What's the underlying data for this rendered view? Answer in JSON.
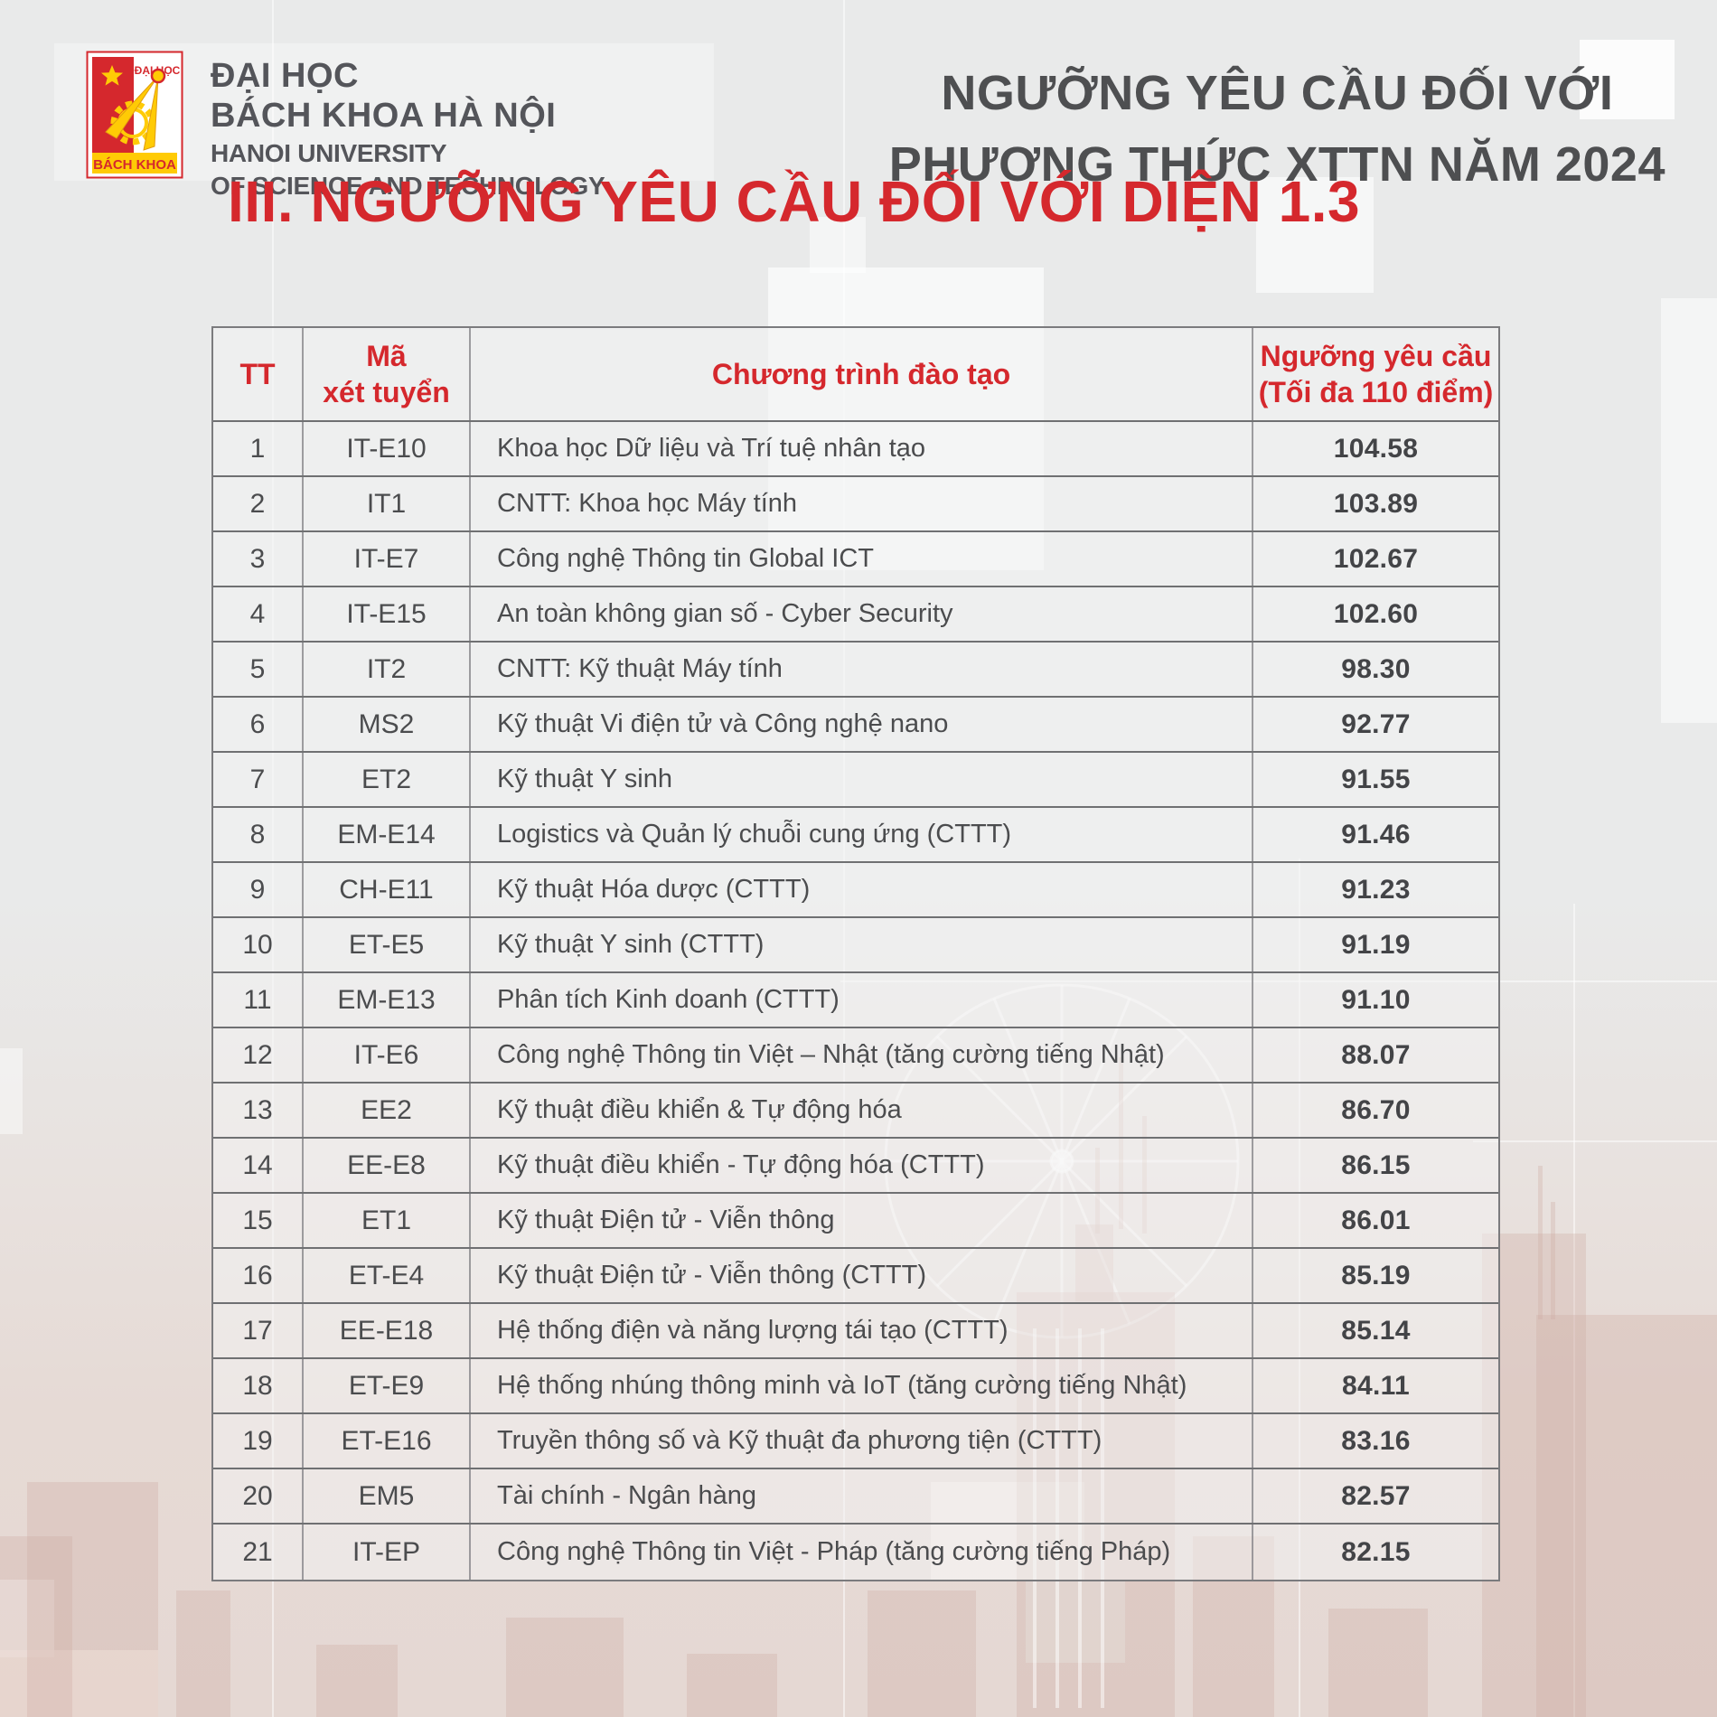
{
  "brand": {
    "logo": {
      "top_text": "ĐẠI HỌC",
      "bottom_text": "BÁCH KHOA"
    },
    "name_line1": "ĐẠI HỌC",
    "name_line2": "BÁCH KHOA HÀ NỘI",
    "name_line3": "HANOI UNIVERSITY",
    "name_line4": "OF SCIENCE AND TECHNOLOGY"
  },
  "banner": {
    "line1": "NGƯỠNG YÊU CẦU ĐỐI VỚI",
    "line2": "PHƯƠNG THỨC XTTN NĂM 2024"
  },
  "section_title": "III. NGƯỠNG YÊU CẦU ĐỐI VỚI DIỆN 1.3",
  "table": {
    "headers": {
      "tt": "TT",
      "code_line1": "Mã",
      "code_line2": "xét tuyển",
      "program": "Chương trình đào tạo",
      "threshold_line1": "Ngưỡng yêu cầu",
      "threshold_line2": "(Tối đa 110 điểm)"
    },
    "rows": [
      {
        "tt": "1",
        "code": "IT-E10",
        "program": "Khoa học Dữ liệu và Trí tuệ nhân tạo",
        "score": "104.58"
      },
      {
        "tt": "2",
        "code": "IT1",
        "program": "CNTT: Khoa học Máy tính",
        "score": "103.89"
      },
      {
        "tt": "3",
        "code": "IT-E7",
        "program": "Công nghệ Thông tin Global ICT",
        "score": "102.67"
      },
      {
        "tt": "4",
        "code": "IT-E15",
        "program": "An toàn không gian số - Cyber Security",
        "score": "102.60"
      },
      {
        "tt": "5",
        "code": "IT2",
        "program": "CNTT: Kỹ thuật Máy tính",
        "score": "98.30"
      },
      {
        "tt": "6",
        "code": "MS2",
        "program": "Kỹ thuật Vi điện tử và Công nghệ nano",
        "score": "92.77"
      },
      {
        "tt": "7",
        "code": "ET2",
        "program": "Kỹ thuật Y sinh",
        "score": "91.55"
      },
      {
        "tt": "8",
        "code": "EM-E14",
        "program": "Logistics và Quản lý chuỗi cung ứng (CTTT)",
        "score": "91.46"
      },
      {
        "tt": "9",
        "code": "CH-E11",
        "program": "Kỹ thuật Hóa dược (CTTT)",
        "score": "91.23"
      },
      {
        "tt": "10",
        "code": "ET-E5",
        "program": "Kỹ thuật Y sinh (CTTT)",
        "score": "91.19"
      },
      {
        "tt": "11",
        "code": "EM-E13",
        "program": "Phân tích Kinh doanh (CTTT)",
        "score": "91.10"
      },
      {
        "tt": "12",
        "code": "IT-E6",
        "program": "Công nghệ Thông tin Việt – Nhật (tăng cường tiếng Nhật)",
        "score": "88.07"
      },
      {
        "tt": "13",
        "code": "EE2",
        "program": "Kỹ thuật điều khiển & Tự động hóa",
        "score": "86.70"
      },
      {
        "tt": "14",
        "code": "EE-E8",
        "program": "Kỹ thuật điều khiển - Tự động hóa (CTTT)",
        "score": "86.15"
      },
      {
        "tt": "15",
        "code": "ET1",
        "program": "Kỹ thuật Điện tử - Viễn thông",
        "score": "86.01"
      },
      {
        "tt": "16",
        "code": "ET-E4",
        "program": "Kỹ thuật Điện tử - Viễn thông (CTTT)",
        "score": "85.19"
      },
      {
        "tt": "17",
        "code": "EE-E18",
        "program": "Hệ thống điện và năng lượng tái tạo (CTTT)",
        "score": "85.14"
      },
      {
        "tt": "18",
        "code": "ET-E9",
        "program": "Hệ thống nhúng thông minh và IoT (tăng cường tiếng Nhật)",
        "score": "84.11"
      },
      {
        "tt": "19",
        "code": "ET-E16",
        "program": "Truyền thông số và Kỹ thuật đa phương tiện (CTTT)",
        "score": "83.16"
      },
      {
        "tt": "20",
        "code": "EM5",
        "program": "Tài chính - Ngân hàng",
        "score": "82.57"
      },
      {
        "tt": "21",
        "code": "IT-EP",
        "program": "Công nghệ Thông tin Việt - Pháp (tăng cường tiếng Pháp)",
        "score": "82.15"
      }
    ]
  },
  "colors": {
    "accent_red": "#d5282d",
    "heading_gray": "#4e4f51",
    "body_gray": "#4b4c4e",
    "logo_yellow": "#ffcb05"
  }
}
